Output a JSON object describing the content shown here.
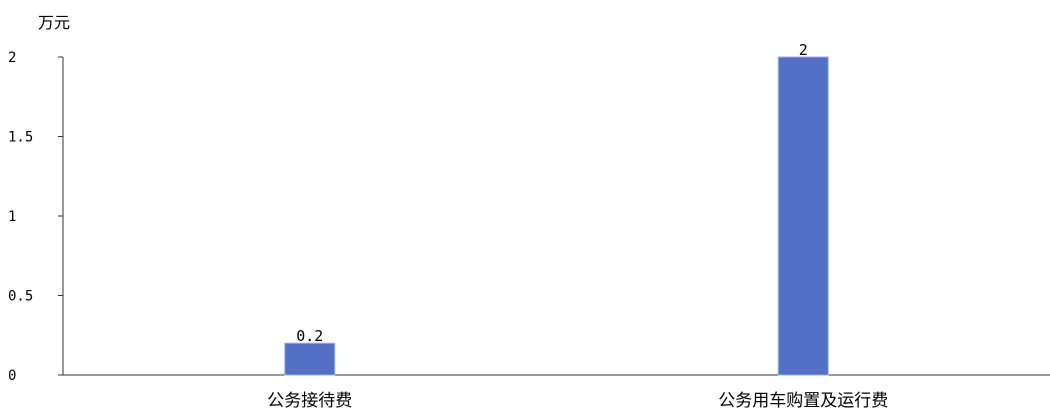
{
  "chart_data": {
    "type": "bar",
    "unit_label": "万元",
    "categories": [
      "公务接待费",
      "公务用车购置及运行费"
    ],
    "values": [
      0.2,
      2
    ],
    "value_labels": [
      "0.2",
      "2"
    ],
    "ylim": [
      0,
      2
    ],
    "yticks": [
      0,
      0.5,
      1,
      1.5,
      2
    ],
    "ytick_labels": [
      "0",
      "0.5",
      "1",
      "1.5",
      "2"
    ],
    "grid": false,
    "colors": {
      "bar": "#5470c6",
      "bar_edge": "#9db0e8",
      "axis": "#333333"
    }
  }
}
